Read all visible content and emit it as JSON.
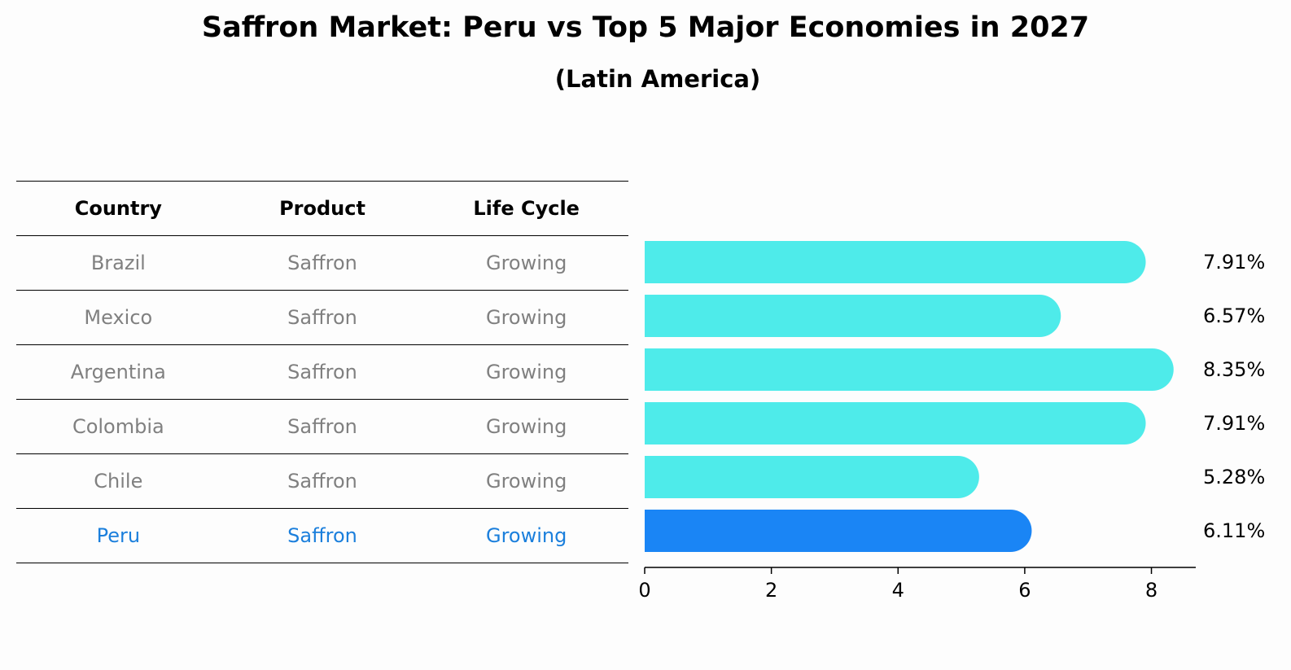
{
  "title": "Saffron Market: Peru vs Top 5 Major Economies in 2027",
  "subtitle": "(Latin America)",
  "table": {
    "headers": [
      "Country",
      "Product",
      "Life Cycle"
    ],
    "rows": [
      [
        "Brazil",
        "Saffron",
        "Growing"
      ],
      [
        "Mexico",
        "Saffron",
        "Growing"
      ],
      [
        "Argentina",
        "Saffron",
        "Growing"
      ],
      [
        "Colombia",
        "Saffron",
        "Growing"
      ],
      [
        "Chile",
        "Saffron",
        "Growing"
      ],
      [
        "Peru",
        "Saffron",
        "Growing"
      ]
    ]
  },
  "chart_data": {
    "type": "bar",
    "orientation": "horizontal",
    "categories": [
      "Brazil",
      "Mexico",
      "Argentina",
      "Colombia",
      "Chile",
      "Peru"
    ],
    "values": [
      7.91,
      6.57,
      8.35,
      7.91,
      5.28,
      6.11
    ],
    "labels": [
      "7.91%",
      "6.57%",
      "8.35%",
      "7.91%",
      "5.28%",
      "6.11%"
    ],
    "highlight": "Peru",
    "xlim": [
      0,
      8.7
    ],
    "xticks": [
      0,
      2,
      4,
      6,
      8
    ],
    "colors": {
      "default": "#4eebea",
      "highlight": "#1a85f5"
    }
  }
}
